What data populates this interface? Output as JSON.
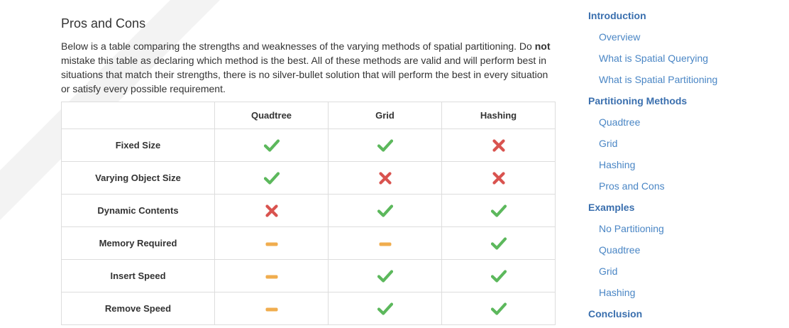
{
  "section": {
    "title": "Pros and Cons",
    "intro_part1": "Below is a table comparing the strengths and weaknesses of the varying methods of spatial partitioning. Do ",
    "intro_bold": "not",
    "intro_part2": " mistake this table as declaring which method is the best. All of these methods are valid and will perform best in situations that match their strengths, there is no silver-bullet solution that will perform the best in every situation or satisfy every possible requirement."
  },
  "table": {
    "headers": [
      "",
      "Quadtree",
      "Grid",
      "Hashing"
    ],
    "rows": [
      {
        "label": "Fixed Size",
        "cells": [
          "check",
          "check",
          "cross"
        ]
      },
      {
        "label": "Varying Object Size",
        "cells": [
          "check",
          "cross",
          "cross"
        ]
      },
      {
        "label": "Dynamic Contents",
        "cells": [
          "cross",
          "check",
          "check"
        ]
      },
      {
        "label": "Memory Required",
        "cells": [
          "dash",
          "dash",
          "check"
        ]
      },
      {
        "label": "Insert Speed",
        "cells": [
          "dash",
          "check",
          "check"
        ]
      },
      {
        "label": "Remove Speed",
        "cells": [
          "dash",
          "check",
          "check"
        ]
      }
    ]
  },
  "colors": {
    "check": "#5cb85c",
    "cross": "#d9534f",
    "dash": "#f0ad4e"
  },
  "toc": [
    {
      "label": "Introduction",
      "level": 1
    },
    {
      "label": "Overview",
      "level": 2
    },
    {
      "label": "What is Spatial Querying",
      "level": 2
    },
    {
      "label": "What is Spatial Partitioning",
      "level": 2
    },
    {
      "label": "Partitioning Methods",
      "level": 1
    },
    {
      "label": "Quadtree",
      "level": 2
    },
    {
      "label": "Grid",
      "level": 2
    },
    {
      "label": "Hashing",
      "level": 2
    },
    {
      "label": "Pros and Cons",
      "level": 2
    },
    {
      "label": "Examples",
      "level": 1
    },
    {
      "label": "No Partitioning",
      "level": 2
    },
    {
      "label": "Quadtree",
      "level": 2
    },
    {
      "label": "Grid",
      "level": 2
    },
    {
      "label": "Hashing",
      "level": 2
    },
    {
      "label": "Conclusion",
      "level": 1
    }
  ]
}
